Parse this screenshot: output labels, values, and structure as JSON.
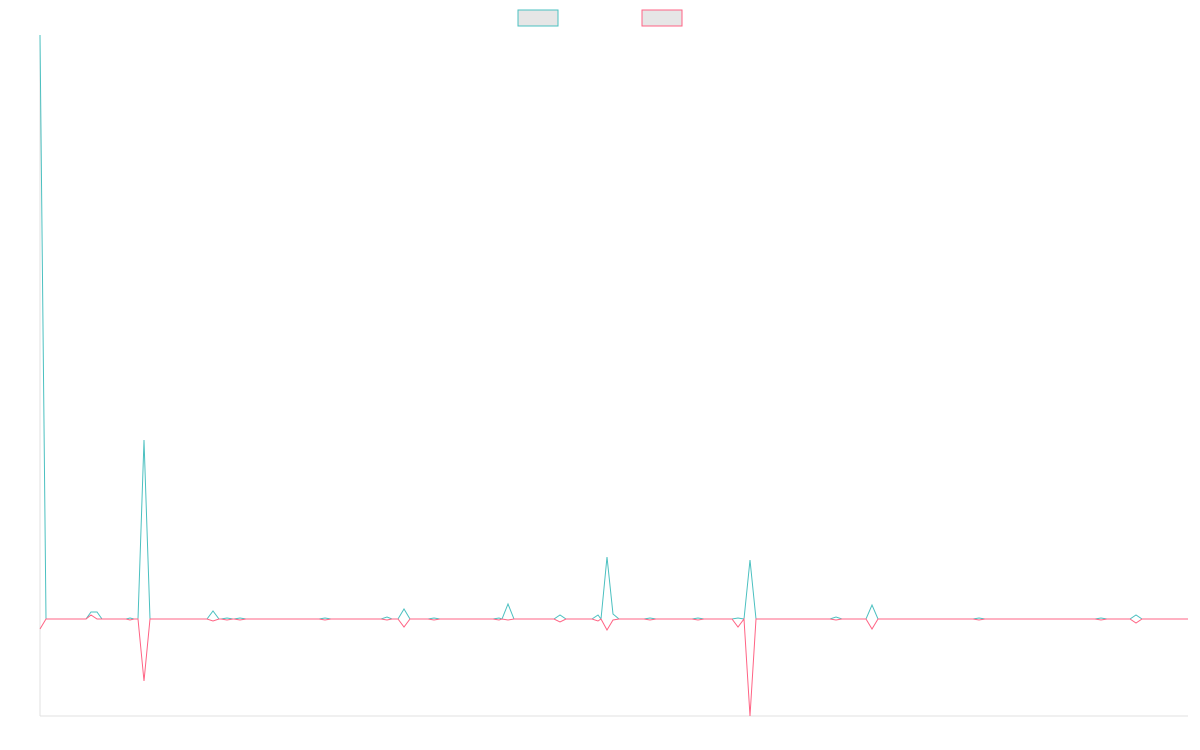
{
  "chart_data": {
    "type": "line",
    "x": [
      0,
      6,
      46,
      51,
      57,
      62,
      86,
      90,
      94,
      98,
      104,
      110,
      167,
      173,
      179,
      181,
      187,
      193,
      194,
      200,
      206,
      279,
      285,
      291,
      341,
      347,
      352,
      358,
      364,
      370,
      388,
      394,
      400,
      453,
      459,
      462,
      468,
      474,
      514,
      520,
      526,
      552,
      558,
      561,
      567,
      573,
      579,
      604,
      610,
      616,
      652,
      658,
      664,
      692,
      698,
      704,
      710,
      716,
      790,
      796,
      802,
      826,
      832,
      838,
      933,
      939,
      945,
      1055,
      1061,
      1067,
      1090,
      1096,
      1102,
      1148
    ],
    "series": [
      {
        "color": "#4bc0c0",
        "values": [
          584,
          0,
          0,
          7,
          7,
          0,
          0,
          1,
          0,
          0,
          179,
          0,
          0,
          8,
          0,
          0,
          1,
          0,
          0,
          1,
          0,
          0,
          1,
          0,
          0,
          2,
          0,
          0,
          10,
          0,
          0,
          1,
          0,
          0,
          1,
          0,
          15,
          0,
          0,
          4,
          0,
          0,
          4,
          0,
          62,
          5,
          0,
          0,
          1,
          0,
          0,
          1,
          0,
          0,
          1,
          0,
          59,
          0,
          0,
          2,
          0,
          0,
          14,
          0,
          0,
          1,
          0,
          0,
          1,
          0,
          0,
          4,
          0,
          0
        ]
      },
      {
        "color": "#ff6384",
        "values": [
          -10,
          0,
          0,
          4,
          0,
          0,
          0,
          -1,
          0,
          0,
          -62,
          0,
          0,
          -2,
          0,
          0,
          -1,
          0,
          0,
          -1,
          0,
          0,
          -1,
          0,
          0,
          -1,
          0,
          0,
          -8,
          0,
          0,
          -1,
          0,
          0,
          -1,
          0,
          -1,
          0,
          0,
          -3,
          0,
          0,
          -2,
          0,
          -11,
          -1,
          0,
          0,
          -1,
          0,
          0,
          -1,
          0,
          0,
          -8,
          0,
          -97,
          0,
          0,
          -1,
          0,
          0,
          -10,
          0,
          0,
          -1,
          0,
          0,
          -1,
          0,
          0,
          -4,
          0,
          0
        ]
      }
    ],
    "xlim": [
      0,
      1148
    ],
    "ylim": [
      -97,
      584
    ],
    "legend": "top"
  }
}
